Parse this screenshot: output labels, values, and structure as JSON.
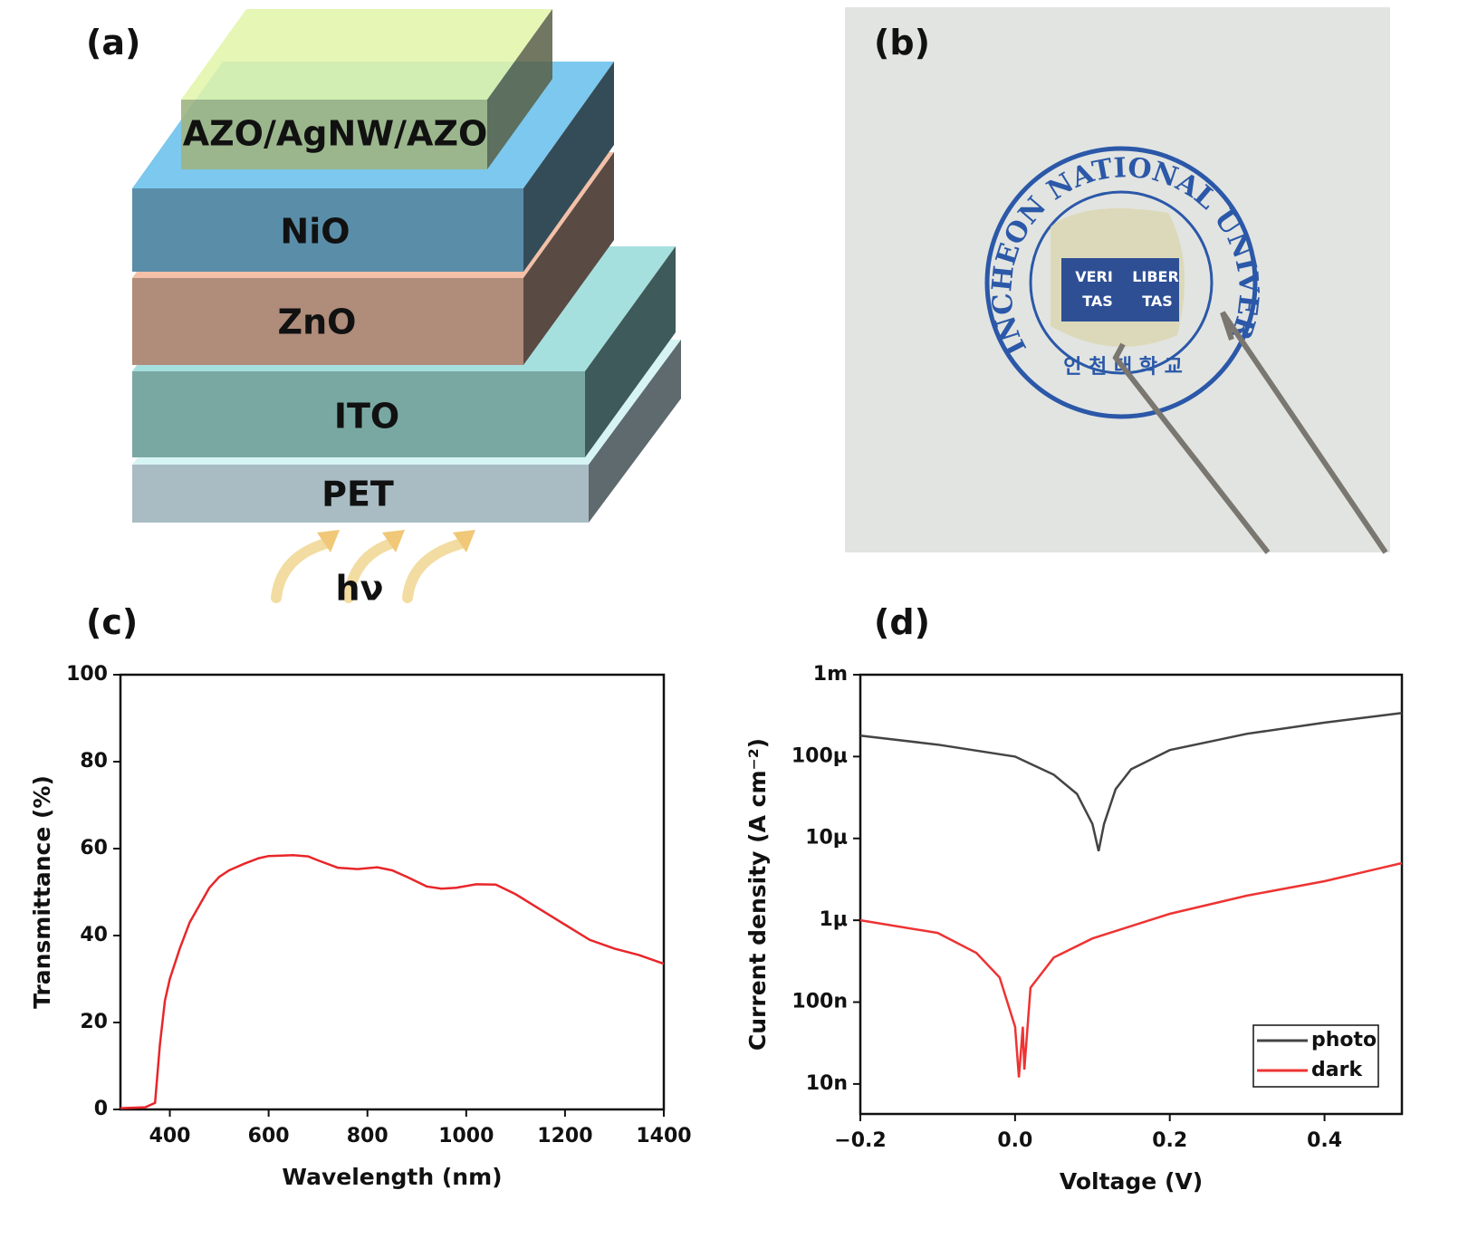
{
  "diagram": {
    "label": "(a)",
    "layers": [
      "AZO/AgNW/AZO",
      "NiO",
      "ZnO",
      "ITO",
      "PET"
    ],
    "light": "hν"
  },
  "photo": {
    "label": "(b)",
    "seal_text": "INCHEON NATIONAL UNIVERSITY",
    "motto": [
      "VERI",
      "TAS",
      "LIBER",
      "TAS"
    ],
    "korean": "인 천 대 학 교"
  },
  "chart_data": [
    {
      "type": "line",
      "label": "(c)",
      "xlabel": "Wavelength (nm)",
      "ylabel": "Transmittance (%)",
      "xlim": [
        300,
        1400
      ],
      "ylim": [
        0,
        100
      ],
      "xticks": [
        400,
        600,
        800,
        1000,
        1200,
        1400
      ],
      "yticks": [
        0,
        20,
        40,
        60,
        80,
        100
      ],
      "series": [
        {
          "color": "#e8262a",
          "x": [
            300,
            350,
            370,
            380,
            390,
            400,
            420,
            440,
            460,
            480,
            500,
            520,
            550,
            580,
            600,
            650,
            680,
            700,
            740,
            780,
            820,
            850,
            880,
            920,
            950,
            980,
            1020,
            1060,
            1100,
            1150,
            1200,
            1250,
            1300,
            1350,
            1400
          ],
          "values": [
            0.3,
            0.5,
            1.5,
            15,
            25,
            30,
            37,
            43,
            47,
            51,
            53.5,
            55,
            56.5,
            57.8,
            58.3,
            58.5,
            58.2,
            57.3,
            55.6,
            55.3,
            55.7,
            55,
            53.5,
            51.3,
            50.8,
            51,
            51.8,
            51.7,
            49.5,
            46,
            42.5,
            39,
            37,
            35.5,
            33.5
          ]
        }
      ]
    },
    {
      "type": "line",
      "label": "(d)",
      "xlabel": "Voltage (V)",
      "ylabel": "Current density (A cm⁻²)",
      "log_y": true,
      "legend": "lower right",
      "xlim": [
        -0.2,
        0.5
      ],
      "ylim": [
        4.3e-09,
        0.001
      ],
      "xticks": [
        {
          "value": -0.2,
          "label": "−0.2"
        },
        {
          "value": 0,
          "label": "0.0"
        },
        0.2,
        0.4
      ],
      "yticks": [
        {
          "value": 1e-08,
          "label": "10n"
        },
        {
          "value": 1e-07,
          "label": "100n"
        },
        {
          "value": 1e-06,
          "label": "1μ"
        },
        {
          "value": 1e-05,
          "label": "10μ"
        },
        {
          "value": 0.0001,
          "label": "100μ"
        },
        {
          "value": 0.001,
          "label": "1m"
        }
      ],
      "series": [
        {
          "name": "photo",
          "color": "#444444",
          "x": [
            -0.2,
            -0.1,
            0,
            0.05,
            0.08,
            0.1,
            0.108,
            0.115,
            0.13,
            0.15,
            0.2,
            0.3,
            0.4,
            0.5
          ],
          "values": [
            0.00018,
            0.00014,
            0.0001,
            6e-05,
            3.5e-05,
            1.5e-05,
            7e-06,
            1.5e-05,
            4e-05,
            7e-05,
            0.00012,
            0.00019,
            0.00026,
            0.00034
          ]
        },
        {
          "name": "dark",
          "color": "#ee3333",
          "x": [
            -0.2,
            -0.1,
            -0.05,
            -0.02,
            0,
            0.005,
            0.01,
            0.012,
            0.02,
            0.05,
            0.1,
            0.2,
            0.3,
            0.4,
            0.5
          ],
          "values": [
            1e-06,
            7e-07,
            4e-07,
            2e-07,
            5e-08,
            1.2e-08,
            5e-08,
            1.5e-08,
            1.5e-07,
            3.5e-07,
            6e-07,
            1.2e-06,
            2e-06,
            3e-06,
            5e-06
          ]
        }
      ]
    }
  ]
}
